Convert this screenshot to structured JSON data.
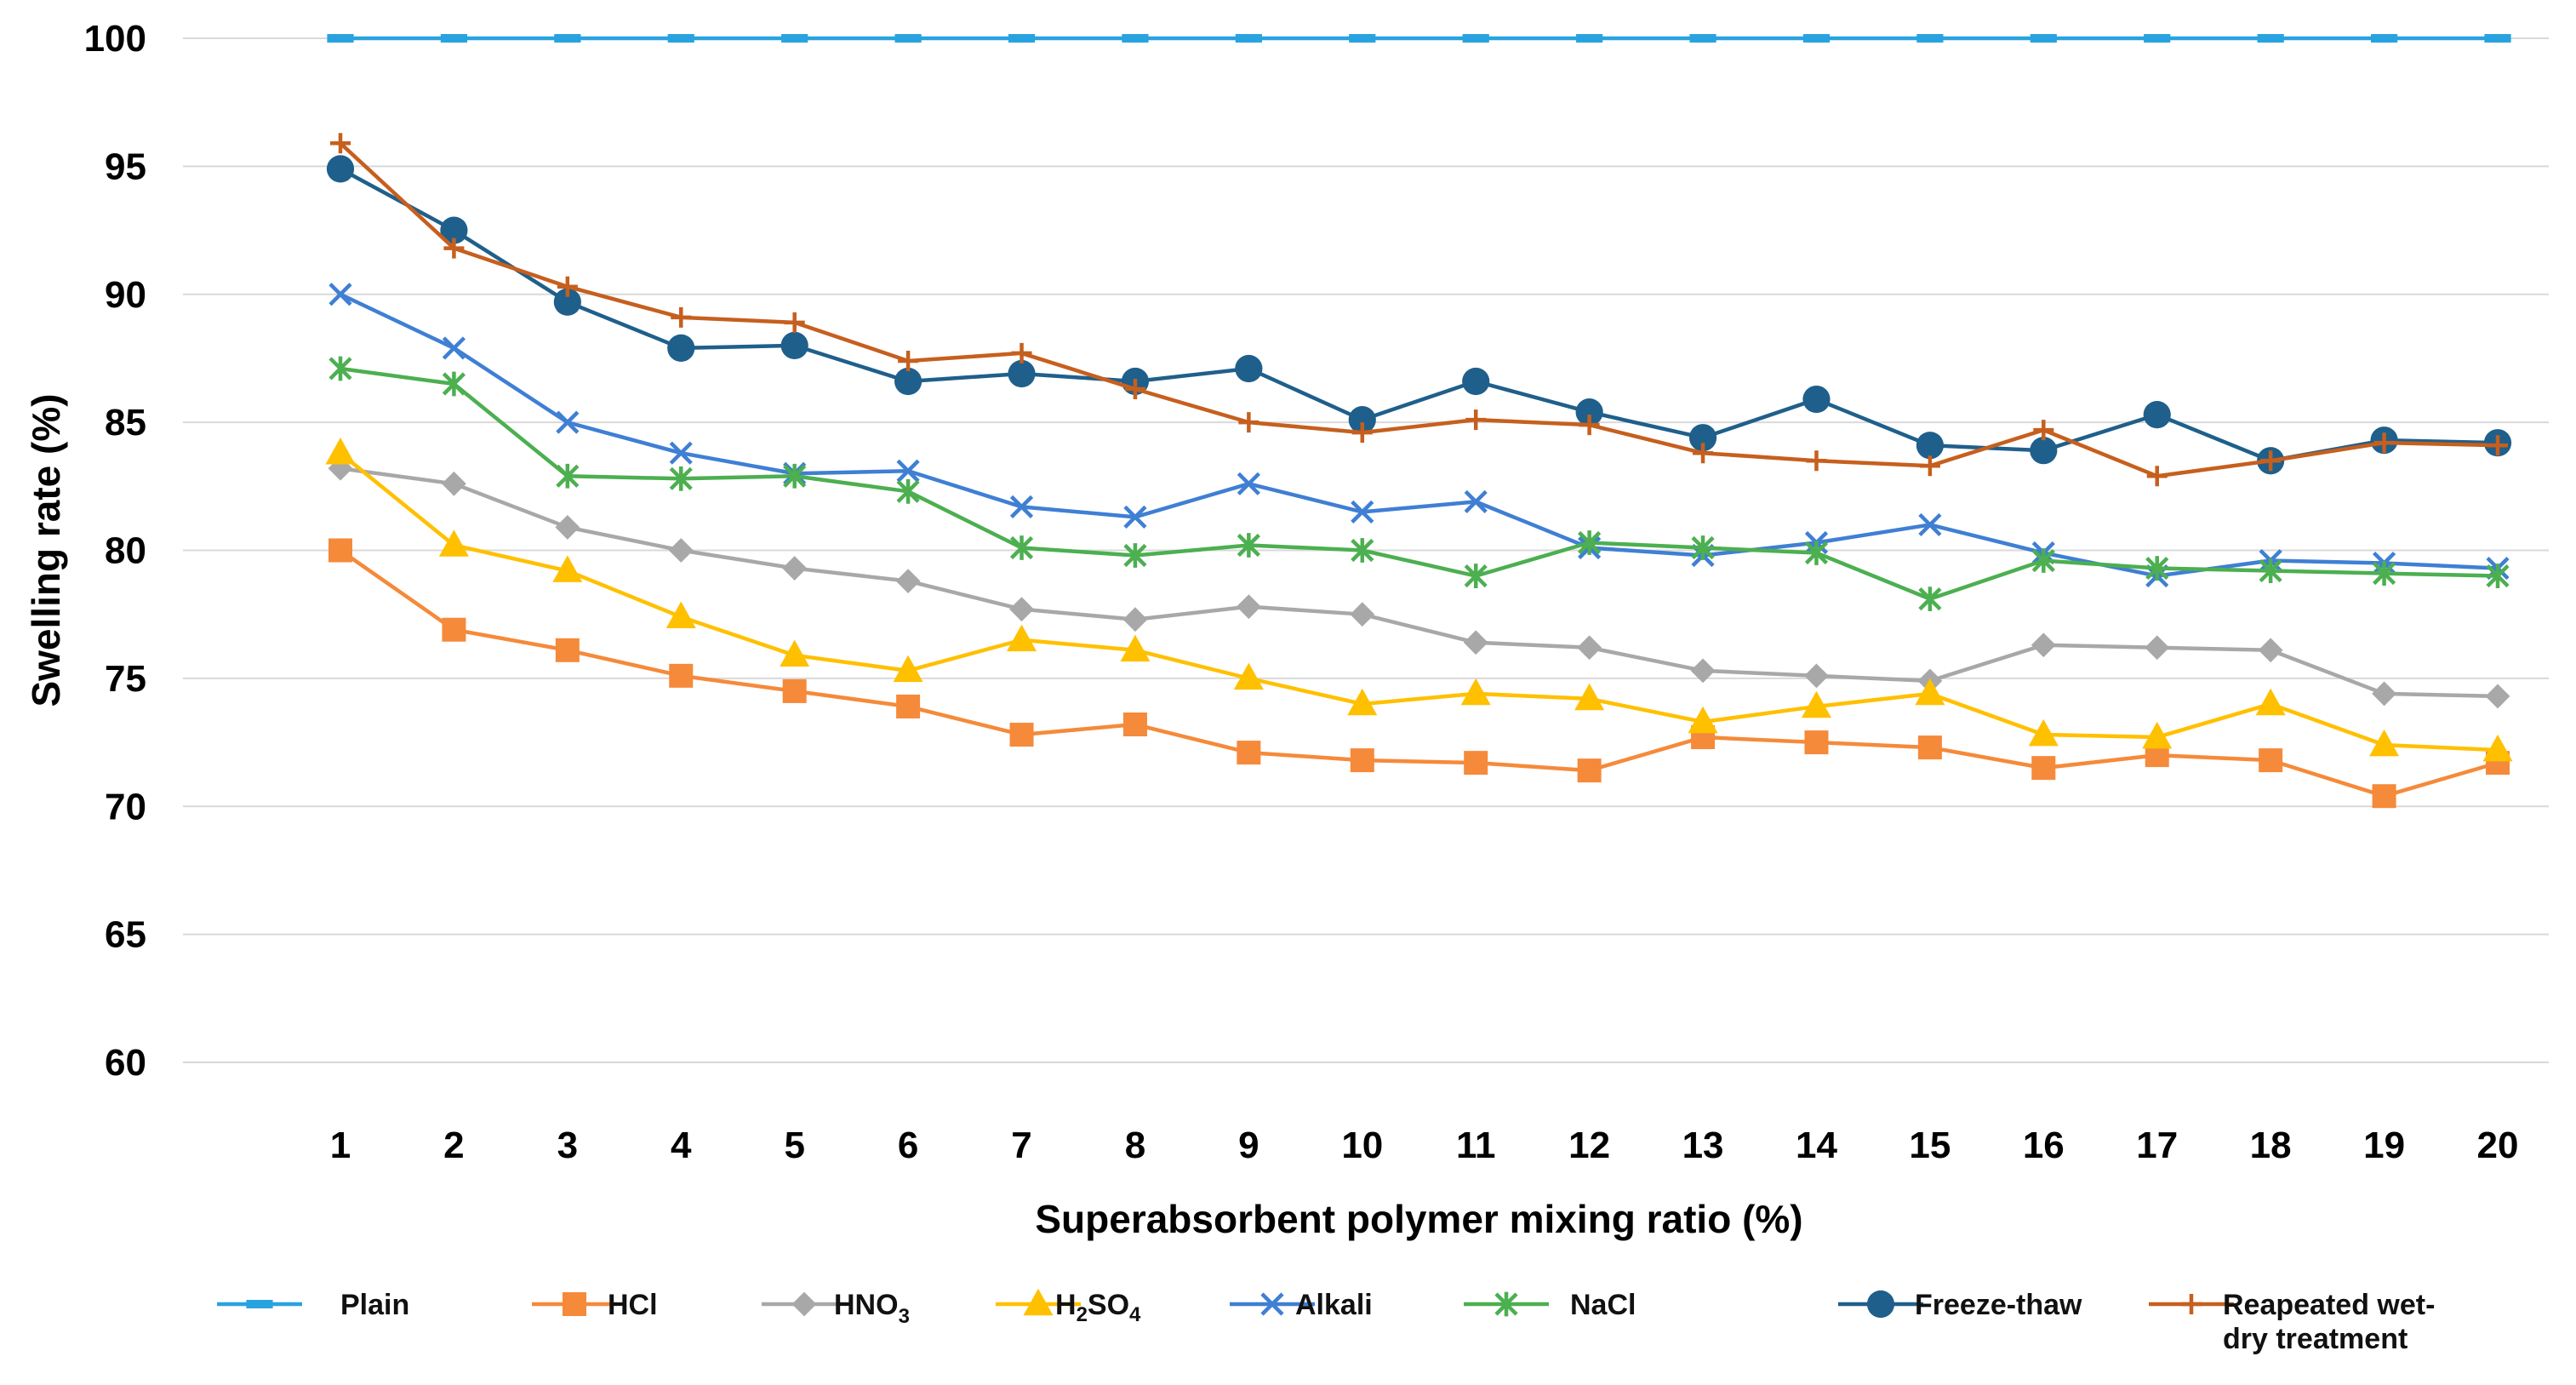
{
  "chart_data": {
    "type": "line",
    "title": "",
    "xlabel": "Superabsorbent polymer mixing ratio (%)",
    "ylabel": "Swelling rate (%)",
    "ylim": [
      60,
      100
    ],
    "y_ticks": [
      "60",
      "65",
      "70",
      "75",
      "80",
      "85",
      "90",
      "95",
      "100"
    ],
    "grid": "horizontal",
    "legend_position": "bottom",
    "categories": [
      "1",
      "2",
      "3",
      "4",
      "5",
      "6",
      "7",
      "8",
      "9",
      "10",
      "11",
      "12",
      "13",
      "14",
      "15",
      "16",
      "17",
      "18",
      "19",
      "20"
    ],
    "series": [
      {
        "name": "Plain",
        "color": "#29a3e0",
        "marker": "dash",
        "values": [
          100,
          100,
          100,
          100,
          100,
          100,
          100,
          100,
          100,
          100,
          100,
          100,
          100,
          100,
          100,
          100,
          100,
          100,
          100,
          100
        ]
      },
      {
        "name": "HCl",
        "color": "#f58a3a",
        "marker": "square",
        "values": [
          80.0,
          76.9,
          76.1,
          75.1,
          74.5,
          73.9,
          72.8,
          73.2,
          72.1,
          71.8,
          71.7,
          71.4,
          72.7,
          72.5,
          72.3,
          71.5,
          72.0,
          71.8,
          70.4,
          71.7
        ]
      },
      {
        "name": "HNO3",
        "label_main": "HNO",
        "label_sub": "3",
        "color": "#a8a8a8",
        "marker": "diamond",
        "values": [
          83.2,
          82.6,
          80.9,
          80.0,
          79.3,
          78.8,
          77.7,
          77.3,
          77.8,
          77.5,
          76.4,
          76.2,
          75.3,
          75.1,
          74.9,
          76.3,
          76.2,
          76.1,
          74.4,
          74.3
        ]
      },
      {
        "name": "H2SO4",
        "label_parts": [
          "H",
          "2",
          "SO",
          "4"
        ],
        "color": "#ffc000",
        "marker": "triangle",
        "values": [
          83.8,
          80.2,
          79.2,
          77.4,
          75.9,
          75.3,
          76.5,
          76.1,
          75.0,
          74.0,
          74.4,
          74.2,
          73.3,
          73.9,
          74.4,
          72.8,
          72.7,
          74.0,
          72.4,
          72.2
        ]
      },
      {
        "name": "Alkali",
        "color": "#3f7fd4",
        "marker": "x",
        "values": [
          90.0,
          87.9,
          85.0,
          83.8,
          83.0,
          83.1,
          81.7,
          81.3,
          82.6,
          81.5,
          81.9,
          80.1,
          79.8,
          80.3,
          81.0,
          79.9,
          79.0,
          79.6,
          79.5,
          79.3
        ]
      },
      {
        "name": "NaCl",
        "color": "#4caf50",
        "marker": "star",
        "values": [
          87.1,
          86.5,
          82.9,
          82.8,
          82.9,
          82.3,
          80.1,
          79.8,
          80.2,
          80.0,
          79.0,
          80.3,
          80.1,
          79.9,
          78.1,
          79.6,
          79.3,
          79.2,
          79.1,
          79.0
        ]
      },
      {
        "name": "Freeze-thaw",
        "color": "#1f5f8b",
        "marker": "circle",
        "values": [
          94.9,
          92.5,
          89.7,
          87.9,
          88.0,
          86.6,
          86.9,
          86.6,
          87.1,
          85.1,
          86.6,
          85.4,
          84.4,
          85.9,
          84.1,
          83.9,
          85.3,
          83.5,
          84.3,
          84.2
        ]
      },
      {
        "name": "Reapeated wet-dry treatment",
        "label_lines": [
          "Reapeated wet-",
          "dry treatment"
        ],
        "color": "#c65f1e",
        "marker": "plus",
        "values": [
          95.9,
          91.8,
          90.3,
          89.1,
          88.9,
          87.4,
          87.7,
          86.3,
          85.0,
          84.6,
          85.1,
          84.9,
          83.8,
          83.5,
          83.3,
          84.7,
          82.9,
          83.5,
          84.2,
          84.1
        ]
      }
    ]
  }
}
